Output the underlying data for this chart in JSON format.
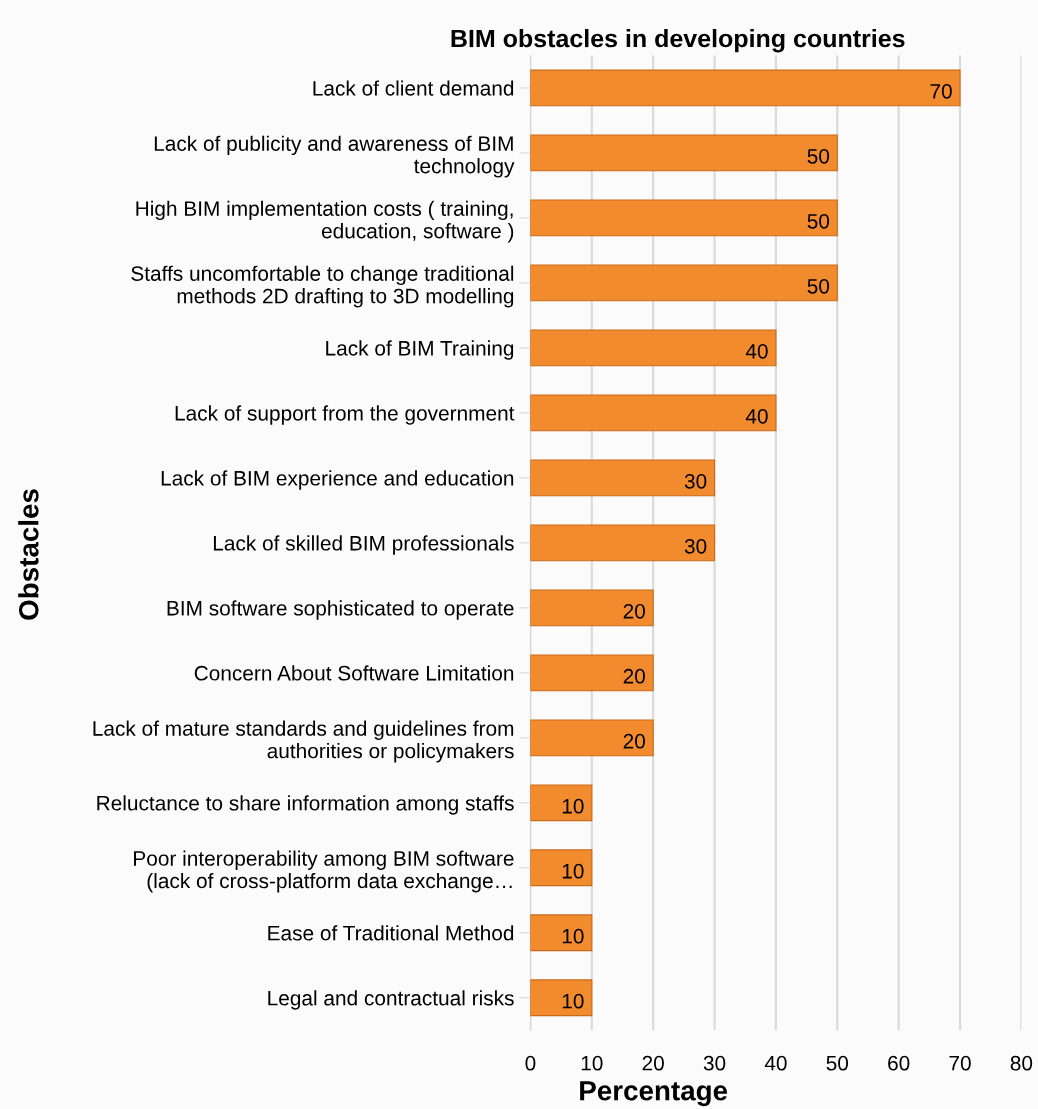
{
  "chart_data": {
    "type": "bar",
    "orientation": "horizontal",
    "title": "BIM obstacles in developing countries",
    "xlabel": "Percentage",
    "ylabel": "Obstacles",
    "categories": [
      "Lack of client demand",
      "Lack of publicity and awareness of BIM\ntechnology",
      "High BIM implementation costs ( training,\neducation, software )",
      "Staffs uncomfortable to change traditional\nmethods 2D drafting to 3D modelling",
      "Lack of BIM Training",
      "Lack of support from the government",
      "Lack of BIM experience and education",
      "Lack of skilled BIM professionals",
      "BIM software sophisticated to operate",
      "Concern About Software Limitation",
      "Lack of mature standards and guidelines from\nauthorities or policymakers",
      "Reluctance to share information among staffs",
      "Poor interoperability among BIM software\n(lack of cross-platform data exchange…",
      "Ease of Traditional Method",
      "Legal and contractual risks"
    ],
    "values": [
      70,
      50,
      50,
      50,
      40,
      40,
      30,
      30,
      20,
      20,
      20,
      10,
      10,
      10,
      10
    ],
    "color": "#f28a2e",
    "xlim": [
      0,
      80
    ],
    "xticks": [
      0,
      10,
      20,
      30,
      40,
      50,
      60,
      70,
      80
    ],
    "grid": "x",
    "data_labels": true
  }
}
